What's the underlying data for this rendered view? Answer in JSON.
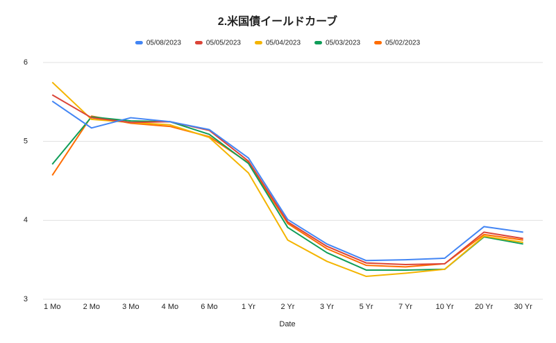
{
  "chart_data": {
    "type": "line",
    "title": "2.米国債イールドカーブ",
    "x_label": "Date",
    "categories": [
      "1 Mo",
      "2 Mo",
      "3 Mo",
      "4 Mo",
      "6 Mo",
      "1 Yr",
      "2 Yr",
      "3 Yr",
      "5 Yr",
      "7 Yr",
      "10 Yr",
      "20 Yr",
      "30 Yr"
    ],
    "series": [
      {
        "name": "05/08/2023",
        "color": "#4285f4",
        "values": [
          5.51,
          5.17,
          5.3,
          5.25,
          5.15,
          4.79,
          4.01,
          3.7,
          3.49,
          3.5,
          3.52,
          3.92,
          3.85
        ]
      },
      {
        "name": "05/05/2023",
        "color": "#db4437",
        "values": [
          5.59,
          5.3,
          5.24,
          5.25,
          5.14,
          4.75,
          3.98,
          3.67,
          3.46,
          3.44,
          3.45,
          3.85,
          3.77
        ]
      },
      {
        "name": "05/04/2023",
        "color": "#f4b400",
        "values": [
          5.75,
          5.28,
          5.24,
          5.21,
          5.05,
          4.6,
          3.75,
          3.48,
          3.29,
          3.33,
          3.38,
          3.8,
          3.72
        ]
      },
      {
        "name": "05/03/2023",
        "color": "#0f9d58",
        "values": [
          4.71,
          5.31,
          5.26,
          5.25,
          5.09,
          4.72,
          3.91,
          3.59,
          3.37,
          3.37,
          3.38,
          3.79,
          3.7
        ]
      },
      {
        "name": "05/02/2023",
        "color": "#ff6d01",
        "values": [
          4.57,
          5.32,
          5.23,
          5.19,
          5.06,
          4.73,
          3.96,
          3.64,
          3.43,
          3.41,
          3.45,
          3.82,
          3.75
        ]
      }
    ],
    "ylim": [
      3,
      6
    ],
    "yticks": [
      3,
      4,
      5,
      6
    ],
    "grid": true,
    "legend": "top"
  }
}
